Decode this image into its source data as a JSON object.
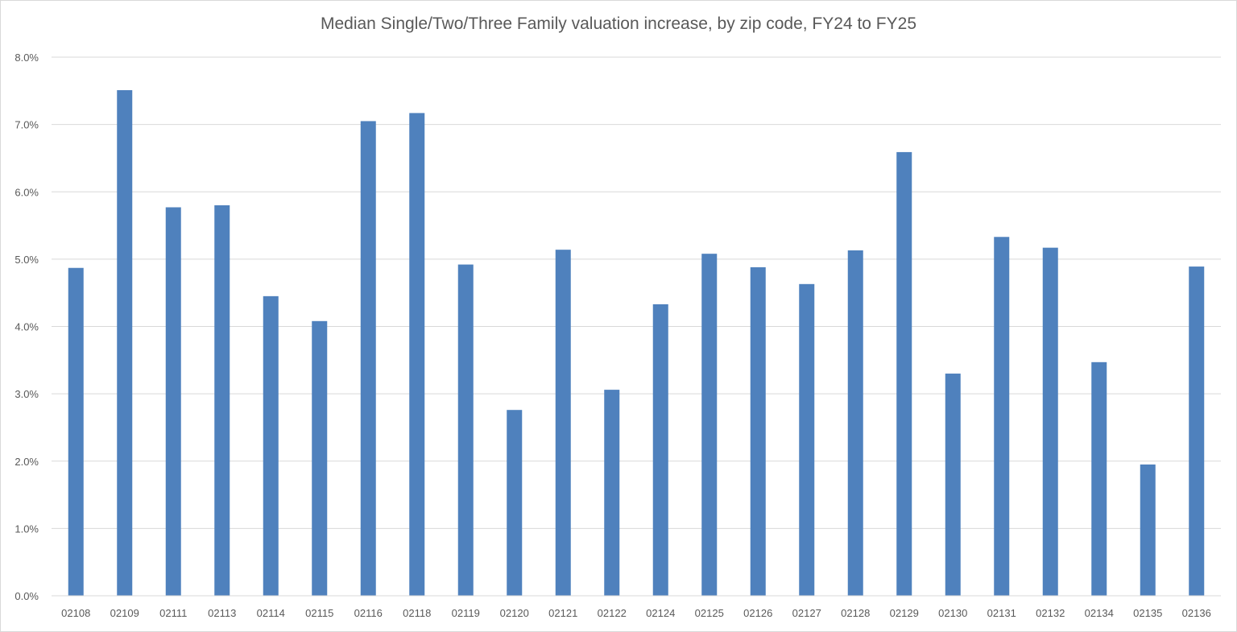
{
  "chart_data": {
    "type": "bar",
    "title": "Median Single/Two/Three Family valuation increase, by zip code, FY24 to FY25",
    "xlabel": "",
    "ylabel": "",
    "ylim": [
      0,
      8
    ],
    "y_unit": "%",
    "y_ticks": [
      "0.0%",
      "1.0%",
      "2.0%",
      "3.0%",
      "4.0%",
      "5.0%",
      "6.0%",
      "7.0%",
      "8.0%"
    ],
    "grid": true,
    "legend": "none",
    "bar_color": "#4f81bd",
    "categories": [
      "02108",
      "02109",
      "02111",
      "02113",
      "02114",
      "02115",
      "02116",
      "02118",
      "02119",
      "02120",
      "02121",
      "02122",
      "02124",
      "02125",
      "02126",
      "02127",
      "02128",
      "02129",
      "02130",
      "02131",
      "02132",
      "02134",
      "02135",
      "02136"
    ],
    "values": [
      4.87,
      7.51,
      5.77,
      5.8,
      4.45,
      4.08,
      7.05,
      7.17,
      4.92,
      2.76,
      5.14,
      3.06,
      4.33,
      5.08,
      4.88,
      4.63,
      5.13,
      6.59,
      3.3,
      5.33,
      5.17,
      3.47,
      1.95,
      4.89
    ]
  }
}
